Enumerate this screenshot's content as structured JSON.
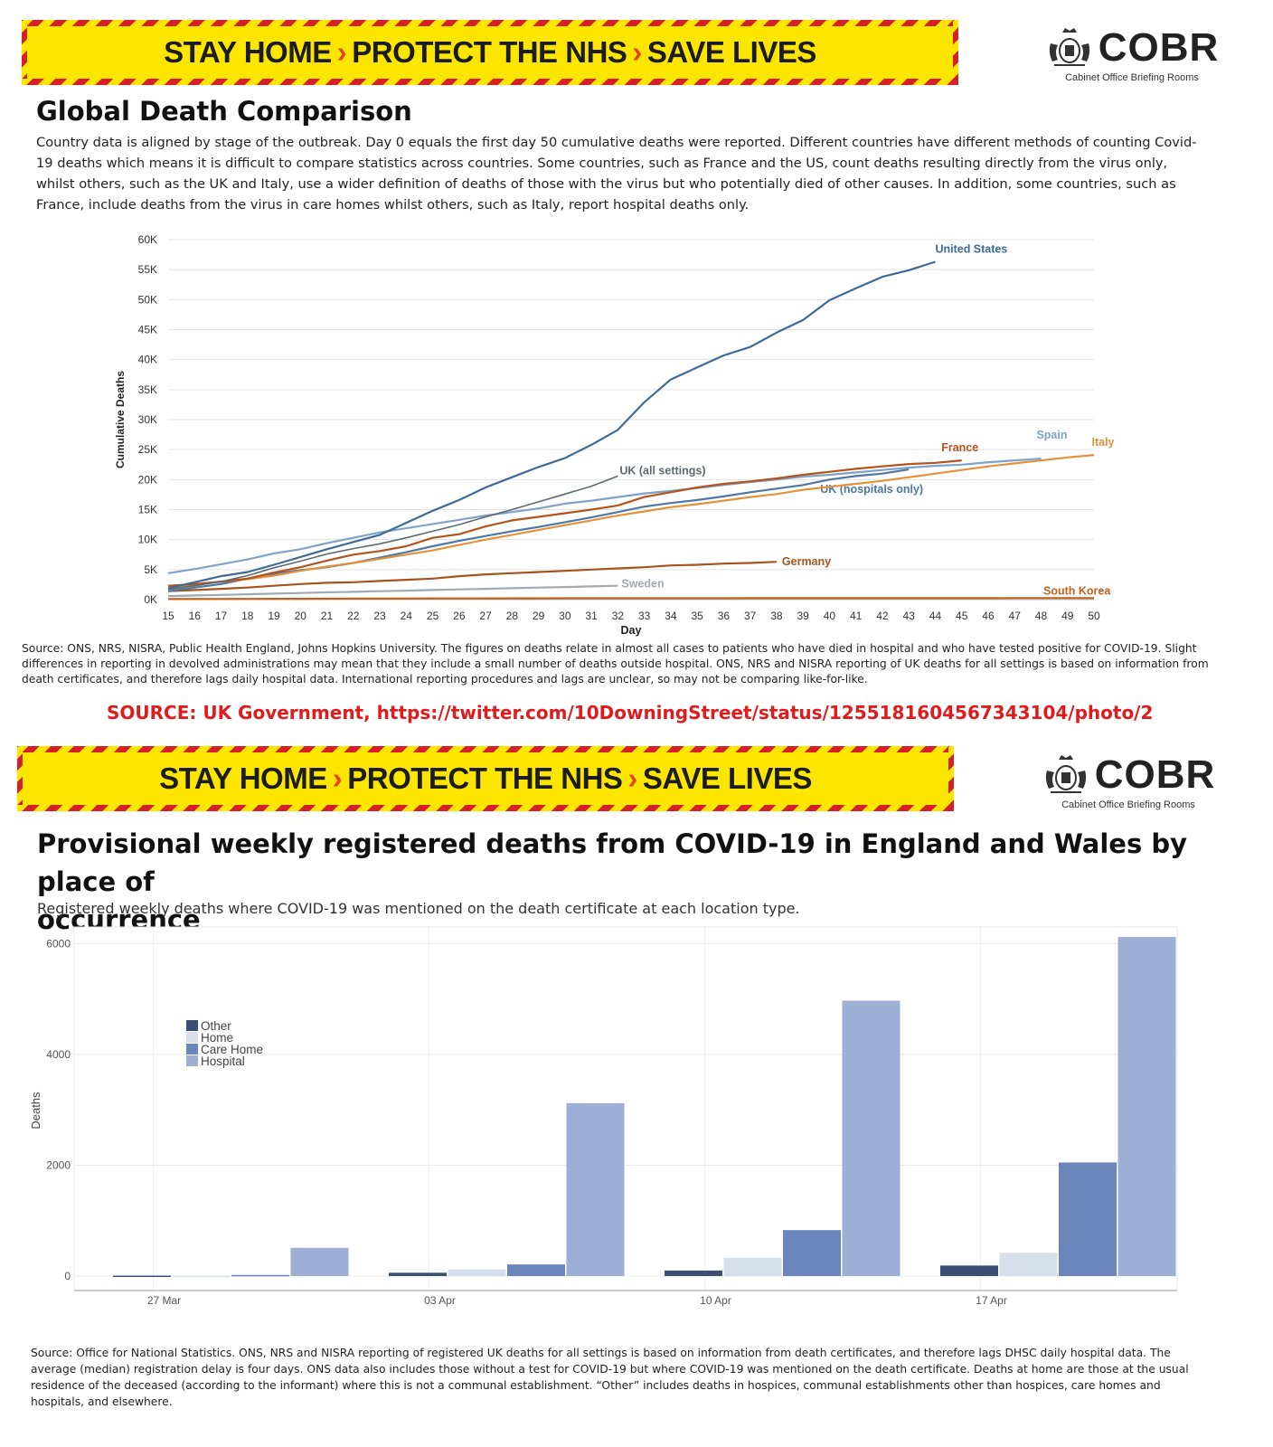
{
  "banner": {
    "part1": "STAY HOME",
    "part2": "PROTECT THE NHS",
    "part3": "SAVE LIVES",
    "arrow": "›"
  },
  "cobr": {
    "name": "COBR",
    "subtitle": "Cabinet Office Briefing Rooms"
  },
  "section1": {
    "title": "Global Death Comparison",
    "description": "Country data is aligned by stage of the outbreak. Day 0 equals the first day 50 cumulative deaths were reported. Different countries have different methods of counting Covid-19 deaths which means it is difficult to compare statistics across countries. Some countries, such as France and the US, count deaths resulting directly from the virus only, whilst others, such as the UK and Italy, use a wider definition of deaths of those with the virus but who potentially died of other causes. In addition, some countries, such as France, include deaths from the virus in care homes whilst others, such as Italy, report hospital deaths only.",
    "source": "Source: ONS, NRS, NISRA, Public Health England, Johns Hopkins University. The figures on deaths relate in almost all cases to patients who have died in hospital and who have tested positive for COVID-19. Slight differences in reporting in devolved administrations may mean that they include a small number of deaths outside hospital. ONS, NRS and NISRA reporting of UK deaths for all settings is based on information from death certificates, and therefore lags daily hospital data. International reporting procedures and lags are unclear, so may not be comparing like-for-like."
  },
  "red_source": "SOURCE: UK Government, https://twitter.com/10DowningStreet/status/1255181604567343104/photo/2",
  "section2": {
    "title_line1": "Provisional weekly registered deaths from COVID-19 in England and Wales by place of",
    "title_line2": "occurrence",
    "subtitle": "Registered weekly deaths where COVID-19 was mentioned on the death certificate at each location type.",
    "source": "Source: Office for National Statistics. ONS, NRS and NISRA reporting of registered UK deaths for all settings is based on information from death certificates, and therefore lags DHSC daily hospital data.  The average (median) registration delay is four days. ONS data also includes those without a test for COVID-19 but where COVID-19 was mentioned on the death certificate. Deaths at home are those at the usual residence of the deceased (according to the informant) where this is not a communal establishment. “Other” includes deaths in hospices, communal establishments other than hospices, care homes and hospitals, and elsewhere."
  },
  "chart_data": [
    {
      "type": "line",
      "title": "Global Death Comparison",
      "xlabel": "Day",
      "ylabel": "Cumulative Deaths",
      "xlim": [
        15,
        50
      ],
      "ylim": [
        0,
        60000
      ],
      "yticks": [
        0,
        5000,
        10000,
        15000,
        20000,
        25000,
        30000,
        35000,
        40000,
        45000,
        50000,
        55000,
        60000
      ],
      "ytick_labels": [
        "0K",
        "5K",
        "10K",
        "15K",
        "20K",
        "25K",
        "30K",
        "35K",
        "40K",
        "45K",
        "50K",
        "55K",
        "60K"
      ],
      "xticks": [
        15,
        16,
        17,
        18,
        19,
        20,
        21,
        22,
        23,
        24,
        25,
        26,
        27,
        28,
        29,
        30,
        31,
        32,
        33,
        34,
        35,
        36,
        37,
        38,
        39,
        40,
        41,
        42,
        43,
        44,
        45,
        46,
        47,
        48,
        49,
        50
      ],
      "series": [
        {
          "name": "United States",
          "label": "United States",
          "color": "#3e6b95",
          "start": 15,
          "values": [
            1900,
            2900,
            3900,
            4600,
            5800,
            7100,
            8400,
            9600,
            10800,
            12800,
            14800,
            16600,
            18700,
            20400,
            22100,
            23600,
            25800,
            28300,
            32900,
            36700,
            38700,
            40700,
            42100,
            44500,
            46600,
            49900,
            51900,
            53800,
            54900,
            56300
          ]
        },
        {
          "name": "UK (all settings)",
          "label": "UK (all settings)",
          "color": "#5e6a70",
          "start": 15,
          "values": [
            1700,
            2300,
            3000,
            4000,
            5300,
            6400,
            7600,
            8500,
            9300,
            10300,
            11400,
            12500,
            13800,
            15000,
            16300,
            17600,
            18900,
            20600
          ]
        },
        {
          "name": "France",
          "label": "France",
          "color": "#b5531d",
          "start": 15,
          "values": [
            2300,
            2600,
            3000,
            3500,
            4500,
            5400,
            6500,
            7500,
            8100,
            8900,
            10300,
            10900,
            12200,
            13200,
            13800,
            14400,
            15000,
            15700,
            17100,
            17900,
            18700,
            19300,
            19700,
            20200,
            20800,
            21300,
            21800,
            22200,
            22600,
            22800,
            23200
          ]
        },
        {
          "name": "Spain",
          "label": "Spain",
          "color": "#7ea3c9",
          "start": 15,
          "values": [
            4400,
            5100,
            5900,
            6700,
            7700,
            8400,
            9400,
            10300,
            11200,
            11900,
            12600,
            13300,
            14000,
            14600,
            15200,
            16000,
            16500,
            17100,
            17700,
            18100,
            18600,
            19100,
            19600,
            20000,
            20500,
            20800,
            21200,
            21600,
            22000,
            22300,
            22500,
            22900,
            23200,
            23500
          ]
        },
        {
          "name": "Italy",
          "label": "Italy",
          "color": "#e2923a",
          "start": 15,
          "values": [
            2000,
            2500,
            3000,
            3400,
            4000,
            4800,
            5500,
            6100,
            6800,
            7500,
            8200,
            9100,
            10000,
            10800,
            11600,
            12400,
            13200,
            14000,
            14700,
            15400,
            15900,
            16500,
            17100,
            17600,
            18300,
            18800,
            19300,
            19800,
            20400,
            21000,
            21600,
            22200,
            22700,
            23200,
            23700,
            24100
          ]
        },
        {
          "name": "UK (hospitals only)",
          "label": "UK (hospitals only)",
          "color": "#4e77a3",
          "start": 15,
          "values": [
            1400,
            2000,
            2600,
            3500,
            4300,
            4900,
            5400,
            6100,
            7000,
            7900,
            8900,
            9800,
            10600,
            11400,
            12100,
            12900,
            13700,
            14600,
            15500,
            16100,
            16600,
            17200,
            17900,
            18500,
            19100,
            20000,
            20600,
            21000,
            21700
          ]
        },
        {
          "name": "Germany",
          "label": "Germany",
          "color": "#a6541e",
          "start": 15,
          "values": [
            1400,
            1600,
            1800,
            2000,
            2300,
            2600,
            2800,
            2900,
            3100,
            3300,
            3500,
            3900,
            4200,
            4400,
            4600,
            4800,
            5000,
            5200,
            5400,
            5700,
            5800,
            6000,
            6100,
            6300
          ]
        },
        {
          "name": "Sweden",
          "label": "Sweden",
          "color": "#a0aab3",
          "start": 15,
          "values": [
            590,
            690,
            790,
            890,
            1000,
            1100,
            1200,
            1300,
            1400,
            1500,
            1600,
            1700,
            1800,
            1900,
            2000,
            2100,
            2200,
            2300
          ]
        },
        {
          "name": "South Korea",
          "label": "South Korea",
          "color": "#c2611f",
          "start": 15,
          "values": [
            90,
            100,
            110,
            120,
            130,
            140,
            150,
            160,
            170,
            180,
            190,
            200,
            200,
            210,
            210,
            220,
            220,
            220,
            230,
            230,
            230,
            230,
            240,
            240,
            240,
            240,
            240,
            240,
            240,
            240,
            240,
            240,
            250,
            250,
            250,
            250
          ]
        }
      ]
    },
    {
      "type": "bar",
      "title": "Provisional weekly registered deaths from COVID-19 in England and Wales by place of occurrence",
      "xlabel": "",
      "ylabel": "Deaths",
      "ylim": [
        0,
        6300
      ],
      "yticks": [
        0,
        2000,
        4000,
        6000
      ],
      "categories": [
        "27 Mar",
        "03 Apr",
        "10 Apr",
        "17 Apr"
      ],
      "legend": [
        "Other",
        "Home",
        "Care Home",
        "Hospital"
      ],
      "series": [
        {
          "name": "Other",
          "color": "#3a4f74",
          "values": [
            8,
            60,
            100,
            190
          ]
        },
        {
          "name": "Home",
          "color": "#d8dfec",
          "values": [
            6,
            120,
            330,
            420
          ]
        },
        {
          "name": "Care Home",
          "color": "#6a86bb",
          "values": [
            20,
            210,
            830,
            2050
          ]
        },
        {
          "name": "Hospital",
          "color": "#9dafd4",
          "values": [
            510,
            3120,
            4970,
            6120
          ]
        }
      ]
    }
  ]
}
